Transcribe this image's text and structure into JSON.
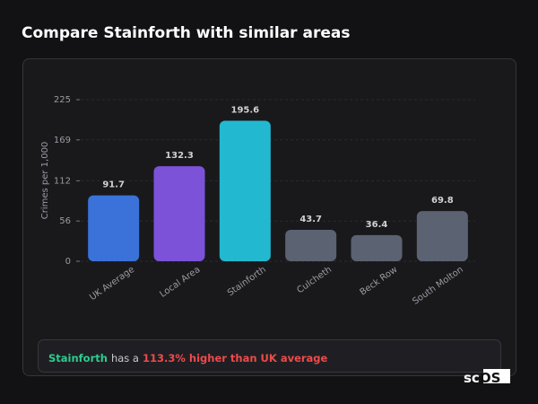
{
  "chart_data": {
    "type": "bar",
    "title": "Compare Stainforth with similar areas",
    "y_label": "Crimes per 1,000",
    "categories": [
      "UK Average",
      "Local Area",
      "Stainforth",
      "Culcheth",
      "Beck Row",
      "South Molton"
    ],
    "values": [
      91.7,
      132.3,
      195.6,
      43.7,
      36.4,
      69.8
    ],
    "colors": [
      "#3a72d9",
      "#7c52d8",
      "#22b9d0",
      "#5b6272",
      "#5b6272",
      "#5b6272"
    ],
    "ylim": [
      0,
      225
    ],
    "yticks": [
      0,
      56,
      112,
      169,
      225
    ],
    "grid": true,
    "summary": {
      "area": "Stainforth",
      "middle": "has a",
      "highlight": "113.3% higher than UK average"
    }
  },
  "logo": "scOS"
}
